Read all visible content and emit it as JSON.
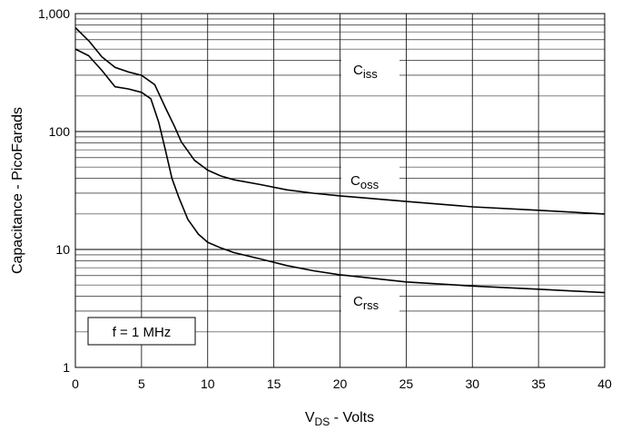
{
  "chart_data": {
    "type": "line",
    "xlabel_main": "V",
    "xlabel_sub": "DS",
    "xlabel_rest": " - Volts",
    "ylabel": "Capacitance - PicoFarads",
    "x_ticks": [
      "0",
      "5",
      "10",
      "15",
      "20",
      "25",
      "30",
      "35",
      "40"
    ],
    "y_ticks": [
      "1",
      "10",
      "100",
      "1,000"
    ],
    "xlim": [
      0,
      40
    ],
    "ylim": [
      1,
      1000
    ],
    "y_scale": "log",
    "grid": true,
    "annotation": "f = 1 MHz",
    "series": [
      {
        "label_main": "C",
        "label_sub": "iss",
        "points": [
          [
            0,
            500
          ],
          [
            1,
            440
          ],
          [
            2,
            330
          ],
          [
            3,
            240
          ],
          [
            4,
            230
          ],
          [
            5,
            215
          ],
          [
            5.7,
            190
          ],
          [
            6.3,
            120
          ],
          [
            6.8,
            70
          ],
          [
            7.3,
            40
          ],
          [
            7.8,
            28
          ],
          [
            8.5,
            18
          ],
          [
            9.3,
            13.5
          ],
          [
            10,
            11.5
          ],
          [
            11,
            10.3
          ],
          [
            12,
            9.4
          ],
          [
            14,
            8.3
          ],
          [
            16,
            7.3
          ],
          [
            18,
            6.6
          ],
          [
            20,
            6.1
          ],
          [
            25,
            5.3
          ],
          [
            30,
            4.9
          ],
          [
            35,
            4.6
          ],
          [
            40,
            4.3
          ]
        ]
      },
      {
        "label_main": "C",
        "label_sub": "oss",
        "points": [
          [
            0,
            760
          ],
          [
            1,
            590
          ],
          [
            2,
            430
          ],
          [
            3,
            350
          ],
          [
            4,
            320
          ],
          [
            5,
            300
          ],
          [
            6,
            250
          ],
          [
            6.8,
            160
          ],
          [
            7.5,
            110
          ],
          [
            8,
            82
          ],
          [
            9,
            57
          ],
          [
            10,
            47
          ],
          [
            11,
            42
          ],
          [
            12,
            39
          ],
          [
            14,
            35.5
          ],
          [
            16,
            32
          ],
          [
            18,
            30
          ],
          [
            20,
            28.5
          ],
          [
            25,
            25.5
          ],
          [
            30,
            23
          ],
          [
            35,
            21.5
          ],
          [
            40,
            20
          ]
        ]
      },
      {
        "label_main": "C",
        "label_sub": "rss"
      }
    ]
  }
}
